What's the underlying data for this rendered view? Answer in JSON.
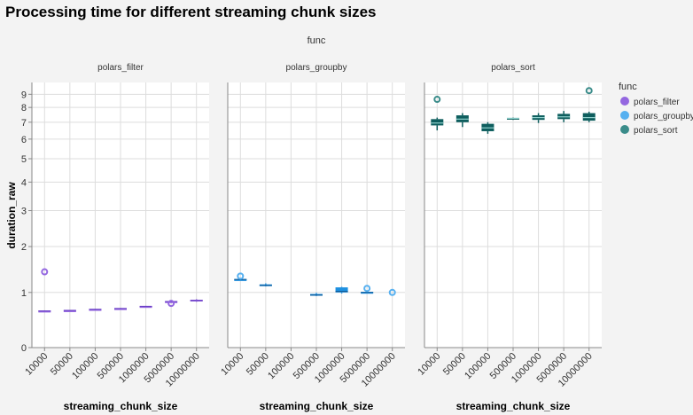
{
  "title": "Processing time for different streaming chunk sizes",
  "facet_header": "func",
  "legend": {
    "title": "func",
    "items": [
      {
        "label": "polars_filter",
        "color": "#9467e0"
      },
      {
        "label": "polars_groupby",
        "color": "#56b0f0"
      },
      {
        "label": "polars_sort",
        "color": "#3a8c8a"
      }
    ]
  },
  "colors": {
    "polars_filter": {
      "box": "#9467e0",
      "median": "#6a3fc4",
      "outlier": "#9467e0"
    },
    "polars_groupby": {
      "box": "#1e90e0",
      "median": "#0d5a98",
      "outlier": "#56b0f0"
    },
    "polars_sort": {
      "box": "#0e5e5e",
      "median": "#8fd0cc",
      "outlier": "#3a8c8a"
    }
  },
  "chart_data": {
    "type": "boxplot",
    "xlabel": "streaming_chunk_size",
    "ylabel": "duration_raw",
    "y_scale": "symlog",
    "ylim": [
      0,
      10
    ],
    "y_ticks": [
      0,
      1,
      2,
      3,
      4,
      5,
      6,
      7,
      8,
      9
    ],
    "categories": [
      "10000",
      "50000",
      "100000",
      "500000",
      "1000000",
      "5000000",
      "10000000"
    ],
    "facets": [
      {
        "name": "polars_filter",
        "boxes": [
          {
            "category": "10000",
            "min": 0.64,
            "q1": 0.645,
            "median": 0.65,
            "q3": 0.655,
            "max": 0.66,
            "outliers": [
              1.42
            ]
          },
          {
            "category": "50000",
            "min": 0.655,
            "q1": 0.657,
            "median": 0.66,
            "q3": 0.662,
            "max": 0.665,
            "outliers": []
          },
          {
            "category": "100000",
            "min": 0.67,
            "q1": 0.675,
            "median": 0.68,
            "q3": 0.685,
            "max": 0.69,
            "outliers": []
          },
          {
            "category": "500000",
            "min": 0.685,
            "q1": 0.69,
            "median": 0.695,
            "q3": 0.7,
            "max": 0.705,
            "outliers": []
          },
          {
            "category": "1000000",
            "min": 0.725,
            "q1": 0.73,
            "median": 0.735,
            "q3": 0.74,
            "max": 0.745,
            "outliers": []
          },
          {
            "category": "5000000",
            "min": 0.815,
            "q1": 0.82,
            "median": 0.825,
            "q3": 0.83,
            "max": 0.835,
            "outliers": [
              0.79
            ]
          },
          {
            "category": "10000000",
            "min": 0.82,
            "q1": 0.83,
            "median": 0.845,
            "q3": 0.86,
            "max": 0.87,
            "outliers": []
          }
        ]
      },
      {
        "name": "polars_groupby",
        "boxes": [
          {
            "category": "10000",
            "min": 1.25,
            "q1": 1.255,
            "median": 1.26,
            "q3": 1.265,
            "max": 1.27,
            "outliers": [
              1.33
            ]
          },
          {
            "category": "50000",
            "min": 1.12,
            "q1": 1.13,
            "median": 1.14,
            "q3": 1.16,
            "max": 1.18,
            "outliers": []
          },
          {
            "category": "100000",
            "min": null,
            "q1": null,
            "median": null,
            "q3": null,
            "max": null,
            "outliers": []
          },
          {
            "category": "500000",
            "min": 0.93,
            "q1": 0.94,
            "median": 0.95,
            "q3": 0.97,
            "max": 0.99,
            "outliers": []
          },
          {
            "category": "1000000",
            "min": 0.98,
            "q1": 1.0,
            "median": 1.02,
            "q3": 1.1,
            "max": 1.11,
            "outliers": []
          },
          {
            "category": "5000000",
            "min": 0.98,
            "q1": 0.99,
            "median": 1.0,
            "q3": 1.01,
            "max": 1.02,
            "outliers": [
              1.08
            ]
          },
          {
            "category": "10000000",
            "min": null,
            "q1": null,
            "median": null,
            "q3": null,
            "max": null,
            "outliers": [
              1.0
            ]
          }
        ]
      },
      {
        "name": "polars_sort",
        "boxes": [
          {
            "category": "10000",
            "min": 6.5,
            "q1": 6.8,
            "median": 6.95,
            "q3": 7.2,
            "max": 7.3,
            "outliers": [
              8.6
            ]
          },
          {
            "category": "50000",
            "min": 6.7,
            "q1": 7.0,
            "median": 7.2,
            "q3": 7.45,
            "max": 7.6,
            "outliers": []
          },
          {
            "category": "100000",
            "min": 6.3,
            "q1": 6.45,
            "median": 6.65,
            "q3": 6.9,
            "max": 7.0,
            "outliers": []
          },
          {
            "category": "500000",
            "min": 7.15,
            "q1": 7.2,
            "median": 7.25,
            "q3": 7.28,
            "max": 7.3,
            "outliers": []
          },
          {
            "category": "1000000",
            "min": 6.95,
            "q1": 7.15,
            "median": 7.3,
            "q3": 7.45,
            "max": 7.6,
            "outliers": []
          },
          {
            "category": "5000000",
            "min": 7.0,
            "q1": 7.2,
            "median": 7.35,
            "q3": 7.55,
            "max": 7.75,
            "outliers": []
          },
          {
            "category": "10000000",
            "min": 7.0,
            "q1": 7.1,
            "median": 7.3,
            "q3": 7.6,
            "max": 7.7,
            "outliers": [
              9.3
            ]
          }
        ]
      }
    ]
  }
}
